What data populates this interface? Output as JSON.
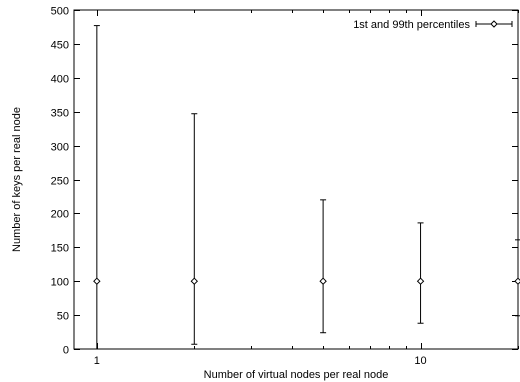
{
  "chart_data": {
    "type": "scatter",
    "title": "",
    "xlabel": "Number of virtual nodes per real node",
    "ylabel": "Number of keys per real node",
    "xscale": "log",
    "xlim": [
      0.85,
      20
    ],
    "ylim": [
      0,
      500
    ],
    "x_ticks": [
      1,
      10
    ],
    "x_tick_labels": [
      "1",
      "10"
    ],
    "y_ticks": [
      0,
      50,
      100,
      150,
      200,
      250,
      300,
      350,
      400,
      450,
      500
    ],
    "y_tick_labels": [
      "0",
      "50",
      "100",
      "150",
      "200",
      "250",
      "300",
      "350",
      "400",
      "450",
      "500"
    ],
    "grid": false,
    "legend_position": "top-right",
    "series": [
      {
        "name": "1st and 99th percentiles",
        "style": "points with error bars",
        "points": [
          {
            "x": 1,
            "y": 100,
            "low": 0,
            "high": 477
          },
          {
            "x": 2,
            "y": 100,
            "low": 7,
            "high": 347
          },
          {
            "x": 5,
            "y": 100,
            "low": 24,
            "high": 220
          },
          {
            "x": 10,
            "y": 100,
            "low": 38,
            "high": 186
          },
          {
            "x": 20,
            "y": 100,
            "low": 49,
            "high": 161
          }
        ]
      }
    ]
  }
}
